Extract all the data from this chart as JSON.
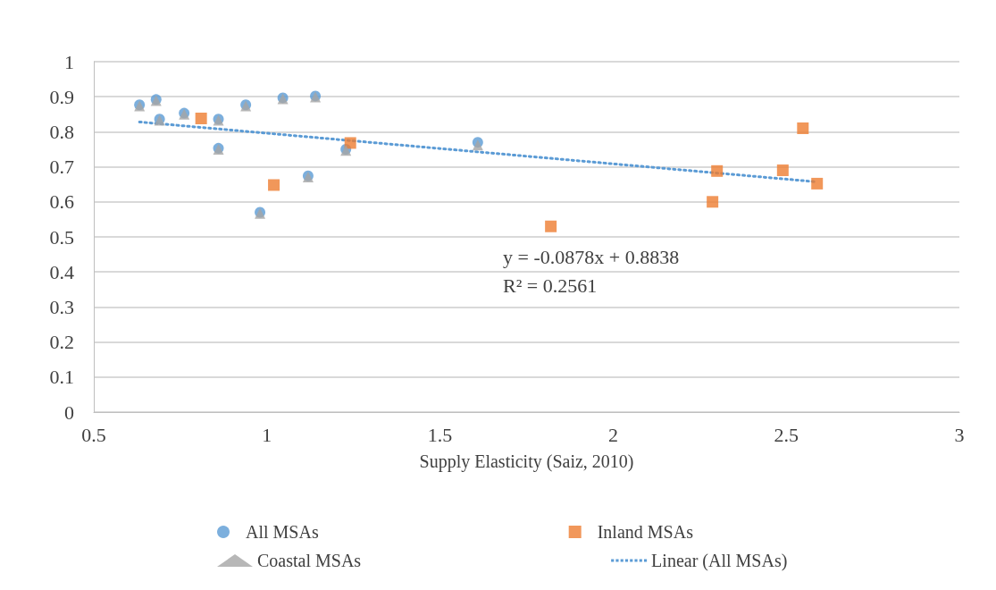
{
  "chart_data": {
    "type": "scatter",
    "xlabel": "Supply Elasticity (Saiz, 2010)",
    "xlim": [
      0.5,
      3
    ],
    "xticks": [
      0.5,
      1,
      1.5,
      2,
      2.5,
      3
    ],
    "ylim": [
      0,
      1
    ],
    "yticks": [
      0,
      0.1,
      0.2,
      0.3,
      0.4,
      0.5,
      0.6,
      0.7,
      0.8,
      0.9,
      1
    ],
    "grid": "y",
    "legend": "bottom",
    "annotations": [
      "y = -0.0878x + 0.8838",
      "R² = 0.2561"
    ],
    "series": [
      {
        "name": "All MSAs",
        "color": "#5b9bd5",
        "marker": "circle",
        "x": [
          0.632,
          0.68,
          0.69,
          0.761,
          0.86,
          0.86,
          0.939,
          0.98,
          1.046,
          1.119,
          1.14,
          1.228,
          1.609
        ],
        "values": [
          0.877,
          0.892,
          0.836,
          0.853,
          0.836,
          0.753,
          0.877,
          0.57,
          0.897,
          0.674,
          0.902,
          0.75,
          0.77
        ]
      },
      {
        "name": "Inland MSAs",
        "color": "#ed7d31",
        "marker": "square",
        "x": [
          0.81,
          1.02,
          1.241,
          1.82,
          2.287,
          2.3,
          2.49,
          2.548,
          2.589
        ],
        "values": [
          0.838,
          0.648,
          0.768,
          0.53,
          0.6,
          0.688,
          0.69,
          0.81,
          0.652
        ]
      },
      {
        "name": "Coastal MSAs",
        "color": "#a5a5a5",
        "marker": "triangle",
        "x": [
          0.632,
          0.68,
          0.69,
          0.761,
          0.86,
          0.86,
          0.939,
          0.98,
          1.046,
          1.119,
          1.14,
          1.228,
          1.609
        ],
        "values": [
          0.874,
          0.889,
          0.833,
          0.85,
          0.833,
          0.75,
          0.874,
          0.567,
          0.894,
          0.671,
          0.899,
          0.747,
          0.762
        ]
      },
      {
        "name": "Linear (All MSAs)",
        "type": "line",
        "color": "#5b9bd5",
        "marker": "none",
        "line_style": "dotted",
        "x": [
          0.632,
          2.589
        ],
        "values": [
          0.828,
          0.657
        ]
      }
    ]
  }
}
